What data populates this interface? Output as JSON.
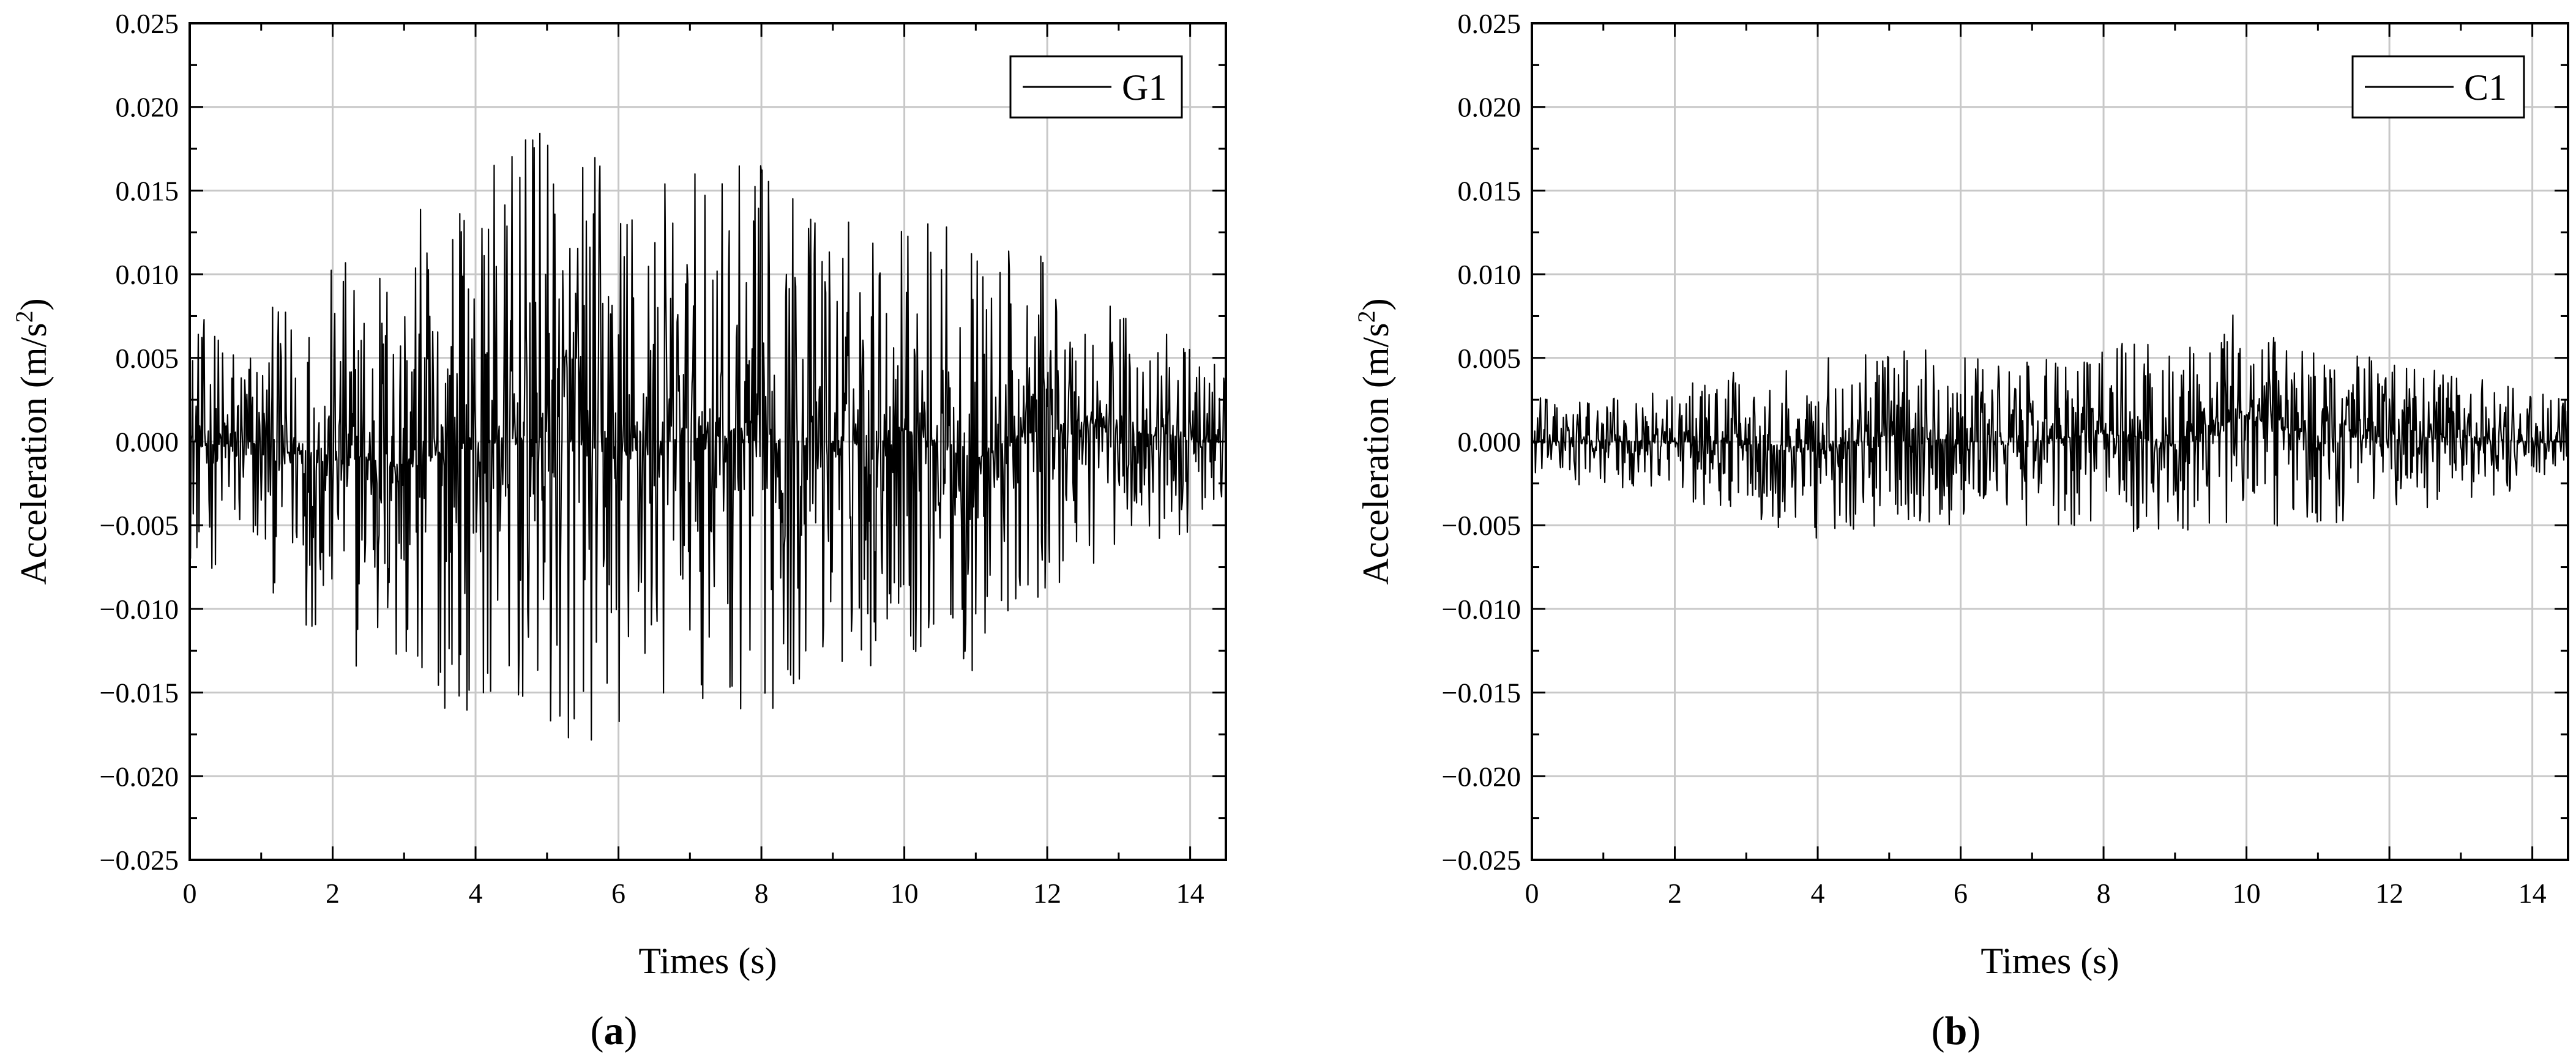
{
  "chart_data": [
    {
      "type": "line",
      "panel_label": "a",
      "xlabel": "Times (s)",
      "ylabel": "Acceleration (m/s²)",
      "ylabel_main": "Acceleration (m/s",
      "ylabel_sup": "2",
      "ylabel_end": ")",
      "xlim": [
        0,
        14.5
      ],
      "ylim": [
        -0.025,
        0.025
      ],
      "xticks": [
        "0",
        "2",
        "4",
        "6",
        "8",
        "10",
        "12",
        "14"
      ],
      "yticks": [
        "−0.025",
        "−0.020",
        "−0.015",
        "−0.010",
        "−0.005",
        "0.000",
        "0.005",
        "0.010",
        "0.015",
        "0.020",
        "0.025"
      ],
      "grid": true,
      "legend_position": "top-right",
      "series": [
        {
          "name": "G1",
          "color": "#000000",
          "sample_interval_s": 0.01,
          "envelope": {
            "t": [
              0,
              1,
              2,
              3,
              4,
              5,
              6,
              7,
              8,
              9,
              10,
              11,
              12,
              13,
              14,
              14.5
            ],
            "max": [
              0.0075,
              0.0075,
              0.0108,
              0.0138,
              0.0158,
              0.0197,
              0.017,
              0.016,
              0.0172,
              0.014,
              0.0145,
              0.0124,
              0.011,
              0.0085,
              0.0055,
              0.005
            ],
            "min": [
              -0.0075,
              -0.0085,
              -0.0125,
              -0.0165,
              -0.016,
              -0.019,
              -0.0185,
              -0.015,
              -0.017,
              -0.014,
              -0.013,
              -0.0145,
              -0.009,
              -0.007,
              -0.0055,
              -0.005
            ]
          }
        }
      ]
    },
    {
      "type": "line",
      "panel_label": "b",
      "xlabel": "Times (s)",
      "ylabel": "Acceleration (m/s²)",
      "ylabel_main": "Acceleration (m/s",
      "ylabel_sup": "2",
      "ylabel_end": ")",
      "xlim": [
        0,
        14.5
      ],
      "ylim": [
        -0.025,
        0.025
      ],
      "xticks": [
        "0",
        "2",
        "4",
        "6",
        "8",
        "10",
        "12",
        "14"
      ],
      "yticks": [
        "−0.025",
        "−0.020",
        "−0.015",
        "−0.010",
        "−0.005",
        "0.000",
        "0.005",
        "0.010",
        "0.015",
        "0.020",
        "0.025"
      ],
      "grid": true,
      "legend_position": "top-right",
      "series": [
        {
          "name": "C1",
          "color": "#000000",
          "sample_interval_s": 0.01,
          "envelope": {
            "t": [
              0,
              1,
              2,
              3,
              4,
              5,
              6,
              7,
              8,
              9,
              10,
              11,
              12,
              13,
              14,
              14.5
            ],
            "max": [
              0.0028,
              0.0025,
              0.0035,
              0.0045,
              0.005,
              0.006,
              0.005,
              0.005,
              0.006,
              0.006,
              0.0087,
              0.0055,
              0.005,
              0.004,
              0.003,
              0.0025
            ],
            "min": [
              -0.0028,
              -0.0025,
              -0.0035,
              -0.0045,
              -0.006,
              -0.005,
              -0.005,
              -0.005,
              -0.005,
              -0.0063,
              -0.0055,
              -0.005,
              -0.0045,
              -0.0035,
              -0.003,
              -0.0025
            ]
          }
        }
      ]
    }
  ]
}
